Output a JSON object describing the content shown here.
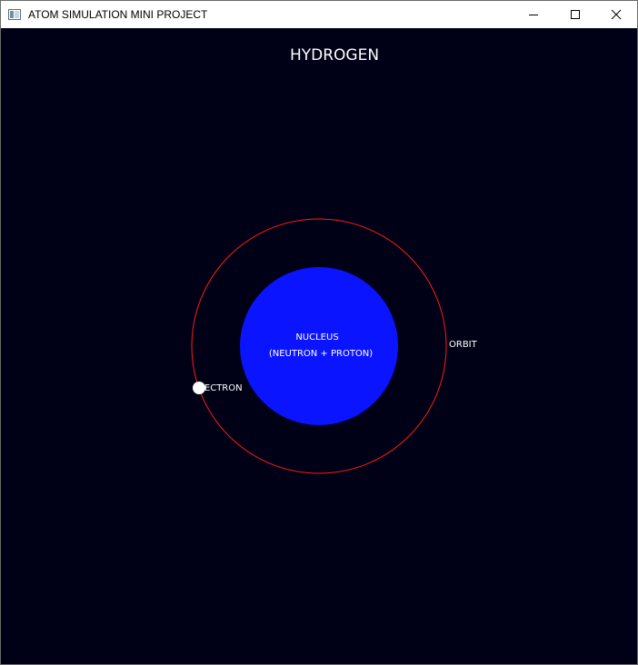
{
  "window": {
    "title": "ATOM SIMULATION MINI PROJECT",
    "icons": {
      "app": "app-window-icon",
      "minimize": "minimize-icon",
      "maximize": "maximize-icon",
      "close": "close-icon"
    }
  },
  "scene": {
    "element_name": "HYDROGEN",
    "nucleus_label": "NUCLEUS",
    "nucleus_sublabel": "(NEUTRON + PROTON)",
    "orbit_label": "ORBIT",
    "electron_label": "ELECTRON",
    "colors": {
      "background": "#000016",
      "nucleus": "#0a14ff",
      "orbit": "#ff1a1a",
      "electron": "#ffffff",
      "text": "#ffffff"
    }
  }
}
